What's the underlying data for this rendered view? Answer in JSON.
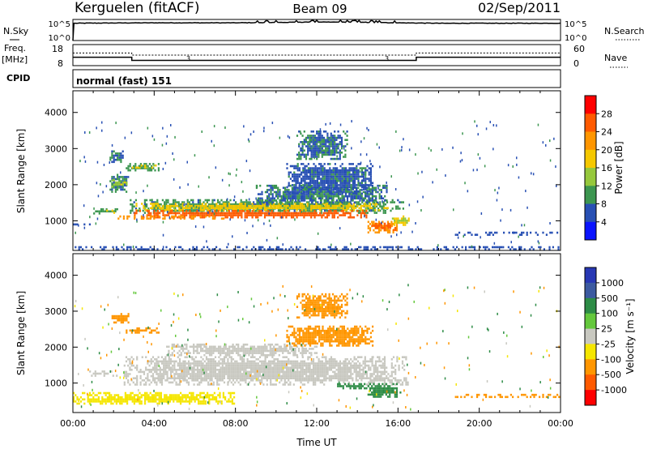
{
  "header": {
    "title": "Kerguelen (fitACF)",
    "beam": "Beam 09",
    "date": "02/Sep/2011"
  },
  "nsky_panel": {
    "left_label": "N.Sky",
    "right_label": "N.Search",
    "ticks": [
      "10^5",
      "10^0"
    ]
  },
  "freq_panel": {
    "left_label_1": "Freq.",
    "left_label_2": "[MHz]",
    "left_ticks": [
      "18",
      "8"
    ],
    "right_label": "Nave",
    "right_ticks": [
      "60",
      "0"
    ],
    "markers": [
      "3",
      "3"
    ]
  },
  "cpid_panel": {
    "label": "CPID",
    "mode_text": "normal (fast) 151"
  },
  "power_panel": {
    "ylabel": "Slant Range [km]",
    "colorbar_label": "Power [dB]",
    "colorbar_ticks": [
      "28",
      "24",
      "20",
      "16",
      "12",
      "8",
      "4"
    ],
    "colorbar_colors": [
      "#ff0000",
      "#ff5a00",
      "#ff9600",
      "#f5c800",
      "#96c83c",
      "#3c9650",
      "#2850b4",
      "#0a14ff"
    ]
  },
  "velocity_panel": {
    "ylabel": "Slant Range [km]",
    "colorbar_label": "Velocity [m s⁻¹]",
    "colorbar_ticks": [
      "1000",
      "500",
      "100",
      "25",
      "-25",
      "-100",
      "-500",
      "-1000"
    ],
    "colorbar_colors": [
      "#2838b4",
      "#3c5aa0",
      "#2d8c46",
      "#64c83c",
      "#c8c8c0",
      "#f5e600",
      "#ff9600",
      "#ff5a00",
      "#ff0000"
    ]
  },
  "xaxis": {
    "label": "Time UT",
    "ticks": [
      "00:00",
      "04:00",
      "08:00",
      "12:00",
      "16:00",
      "20:00",
      "00:00"
    ]
  },
  "chart_data": {
    "type": "heatmap",
    "x_range_hours": [
      0,
      24
    ],
    "y_ticks_km": [
      1000,
      2000,
      3000,
      4000
    ],
    "ylim_km": [
      180,
      4600
    ],
    "nsky": {
      "ylim_log": [
        0,
        5
      ],
      "profile": [
        [
          0,
          4.1
        ],
        [
          1.5,
          4.15
        ],
        [
          4,
          4.2
        ],
        [
          8,
          4.2
        ],
        [
          10,
          4.3
        ],
        [
          12,
          4.4
        ],
        [
          14,
          4.35
        ],
        [
          16,
          4.2
        ],
        [
          18,
          4.1
        ],
        [
          24,
          4.1
        ]
      ]
    },
    "freq": {
      "ylim_mhz": [
        8,
        18
      ],
      "steps": [
        [
          0,
          12
        ],
        [
          2.9,
          12
        ],
        [
          2.9,
          10.5
        ],
        [
          16.9,
          10.5
        ],
        [
          16.9,
          12
        ],
        [
          24,
          12
        ]
      ]
    },
    "nave": {
      "ylim": [
        0,
        60
      ],
      "steps": [
        [
          0,
          36
        ],
        [
          2.9,
          36
        ],
        [
          2.9,
          30
        ],
        [
          16.9,
          30
        ],
        [
          16.9,
          36
        ],
        [
          24,
          36
        ]
      ]
    },
    "power_regions": [
      {
        "t0": 2.8,
        "t1": 16.3,
        "r0": 1180,
        "r1": 1600,
        "value": 9
      },
      {
        "t0": 3.0,
        "t1": 15.5,
        "r0": 1250,
        "r1": 1500,
        "value": 17
      },
      {
        "t0": 3.0,
        "t1": 14.5,
        "r0": 1080,
        "r1": 1300,
        "value": 26
      },
      {
        "t0": 2.2,
        "t1": 7.5,
        "r0": 1050,
        "r1": 1150,
        "value": 22
      },
      {
        "t0": 9.0,
        "t1": 15.5,
        "r0": 1450,
        "r1": 2000,
        "value": 8
      },
      {
        "t0": 10.5,
        "t1": 14.8,
        "r0": 1700,
        "r1": 2600,
        "value": 7
      },
      {
        "t0": 11.0,
        "t1": 13.5,
        "r0": 2700,
        "r1": 3500,
        "value": 8
      },
      {
        "t0": 14.5,
        "t1": 16.0,
        "r0": 650,
        "r1": 1000,
        "value": 22
      },
      {
        "t0": 14.7,
        "t1": 15.9,
        "r0": 720,
        "r1": 950,
        "value": 25
      },
      {
        "t0": 15.7,
        "t1": 16.6,
        "r0": 850,
        "r1": 1150,
        "value": 16
      },
      {
        "t0": 1.0,
        "t1": 2.2,
        "r0": 1150,
        "r1": 1350,
        "value": 10
      },
      {
        "t0": 1.2,
        "t1": 2.1,
        "r0": 1190,
        "r1": 1310,
        "value": 17
      },
      {
        "t0": 1.8,
        "t1": 2.8,
        "r0": 1800,
        "r1": 2300,
        "value": 8
      },
      {
        "t0": 1.9,
        "t1": 2.7,
        "r0": 1900,
        "r1": 2150,
        "value": 15
      },
      {
        "t0": 1.8,
        "t1": 2.5,
        "r0": 2600,
        "r1": 2950,
        "value": 8
      },
      {
        "t0": 2.6,
        "t1": 4.3,
        "r0": 2350,
        "r1": 2600,
        "value": 10
      },
      {
        "t0": 2.9,
        "t1": 4.1,
        "r0": 2420,
        "r1": 2560,
        "value": 17
      },
      {
        "t0": 0.0,
        "t1": 1.0,
        "r0": 850,
        "r1": 930,
        "value": 6
      },
      {
        "t0": 18.8,
        "t1": 24.0,
        "r0": 600,
        "r1": 700,
        "value": 6
      },
      {
        "t0": 0.0,
        "t1": 24.0,
        "r0": 180,
        "r1": 300,
        "value": 6
      }
    ],
    "velocity_regions": [
      {
        "t0": 2.5,
        "t1": 16.5,
        "r0": 950,
        "r1": 1750,
        "value": 0
      },
      {
        "t0": 4.5,
        "t1": 12.0,
        "r0": 1750,
        "r1": 2100,
        "value": 0
      },
      {
        "t0": 14.5,
        "t1": 16.2,
        "r0": 600,
        "r1": 1000,
        "value": 150
      },
      {
        "t0": 13.0,
        "t1": 14.5,
        "r0": 850,
        "r1": 1000,
        "value": 150
      },
      {
        "t0": 0.8,
        "t1": 2.2,
        "r0": 1150,
        "r1": 1350,
        "value": 0
      },
      {
        "t0": 1.9,
        "t1": 2.8,
        "r0": 2650,
        "r1": 2950,
        "value": -300
      },
      {
        "t0": 2.6,
        "t1": 4.3,
        "r0": 2350,
        "r1": 2550,
        "value": -300
      },
      {
        "t0": 11.0,
        "t1": 13.5,
        "r0": 2800,
        "r1": 3500,
        "value": -300
      },
      {
        "t0": 10.5,
        "t1": 14.8,
        "r0": 2000,
        "r1": 2600,
        "value": -150
      },
      {
        "t0": 18.8,
        "t1": 24.0,
        "r0": 600,
        "r1": 700,
        "value": -300
      },
      {
        "t0": 0.0,
        "t1": 8.0,
        "r0": 400,
        "r1": 750,
        "value": -60
      }
    ]
  }
}
